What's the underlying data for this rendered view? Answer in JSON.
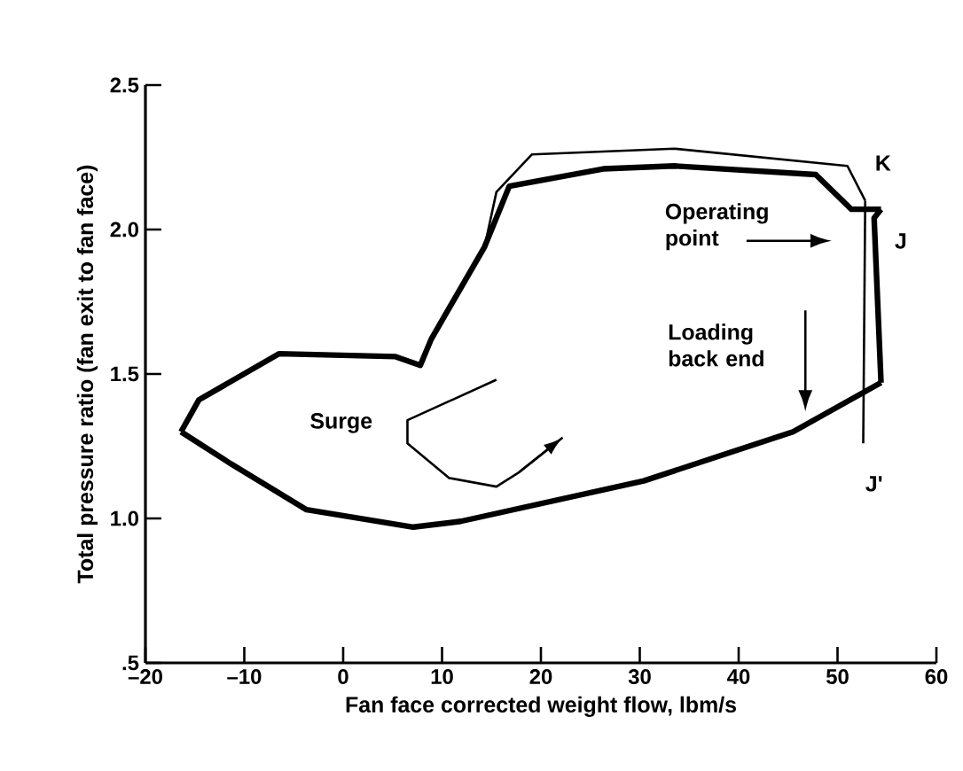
{
  "chart_data": {
    "type": "line",
    "xlabel": "Fan face corrected weight flow, lbm/s",
    "ylabel": "Total pressure ratio (fan exit to fan face)",
    "xlim": [
      -20,
      60
    ],
    "ylim": [
      0.5,
      2.5
    ],
    "xticks": [
      {
        "value": -20,
        "label": "–20"
      },
      {
        "value": -10,
        "label": "–10"
      },
      0,
      10,
      20,
      30,
      40,
      50,
      60
    ],
    "yticks": [
      {
        "value": 0.5,
        "label": ".5"
      },
      {
        "value": 1.0,
        "label": "1.0"
      },
      {
        "value": 1.5,
        "label": "1.5"
      },
      {
        "value": 2.0,
        "label": "2.0"
      },
      {
        "value": 2.5,
        "label": "2.5"
      }
    ],
    "grid": false,
    "marker": "none",
    "line_style": "solid",
    "series": [
      {
        "color": "#000000",
        "x": [
          -16.4,
          -11.4,
          -3.7,
          7.1,
          11.9,
          30.4,
          45.5,
          54.4
        ],
        "values": [
          1.3,
          1.19,
          1.03,
          0.97,
          0.99,
          1.13,
          1.3,
          1.47
        ]
      },
      {
        "color": "#000000",
        "x": [
          -16.4,
          -14.6,
          -6.5,
          5.3,
          7.8,
          8.9,
          14.3,
          16.8,
          26.3,
          33.5,
          47.8,
          51.4,
          54.4
        ],
        "values": [
          1.3,
          1.41,
          1.57,
          1.56,
          1.53,
          1.62,
          1.94,
          2.15,
          2.21,
          2.22,
          2.19,
          2.07,
          2.07
        ]
      },
      {
        "color": "#000000",
        "x": [
          54.4,
          53.7,
          54.4
        ],
        "values": [
          2.07,
          2.04,
          1.47
        ]
      },
      {
        "color": "#000000",
        "x": [
          14.3,
          15.5,
          19.1,
          33.5,
          51.0,
          52.8
        ],
        "values": [
          1.94,
          2.13,
          2.26,
          2.28,
          2.22,
          2.1
        ]
      },
      {
        "color": "#000000",
        "x": [
          52.8,
          52.6
        ],
        "values": [
          2.1,
          1.26
        ]
      },
      {
        "color": "#000000",
        "x": [
          15.5,
          6.5,
          6.5,
          10.7,
          15.5,
          17.8,
          22.2
        ],
        "values": [
          1.48,
          1.34,
          1.26,
          1.14,
          1.11,
          1.16,
          1.28
        ]
      }
    ],
    "annotations": [
      "K",
      "J",
      "J'",
      "Surge",
      "Operating point",
      "Loading back end"
    ]
  }
}
